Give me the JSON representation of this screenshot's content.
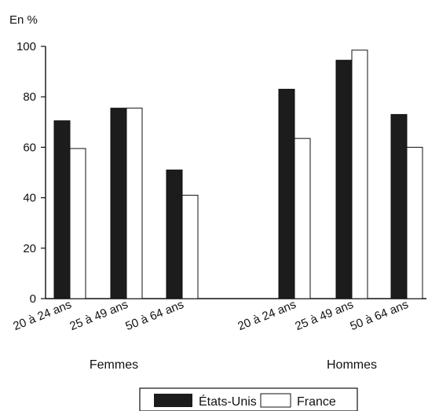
{
  "chart_data": {
    "type": "bar",
    "title": "",
    "ylabel": "En %",
    "xlabel": "",
    "ylim": [
      0,
      100
    ],
    "yticks": [
      0,
      20,
      40,
      60,
      80,
      100
    ],
    "groups": [
      {
        "name": "Femmes",
        "categories": [
          "20 à 24 ans",
          "25 à 49 ans",
          "50 à 64 ans"
        ]
      },
      {
        "name": "Hommes",
        "categories": [
          "20 à 24 ans",
          "25 à 49 ans",
          "50 à 64 ans"
        ]
      }
    ],
    "series": [
      {
        "name": "États-Unis",
        "color": "#1c1c1c",
        "values": [
          70.5,
          75.5,
          51,
          83,
          94.5,
          73
        ]
      },
      {
        "name": "France",
        "color": "#ffffff",
        "values": [
          59.5,
          75.5,
          41,
          63.5,
          98.5,
          60
        ]
      }
    ],
    "grid": false,
    "legend_position": "bottom"
  }
}
